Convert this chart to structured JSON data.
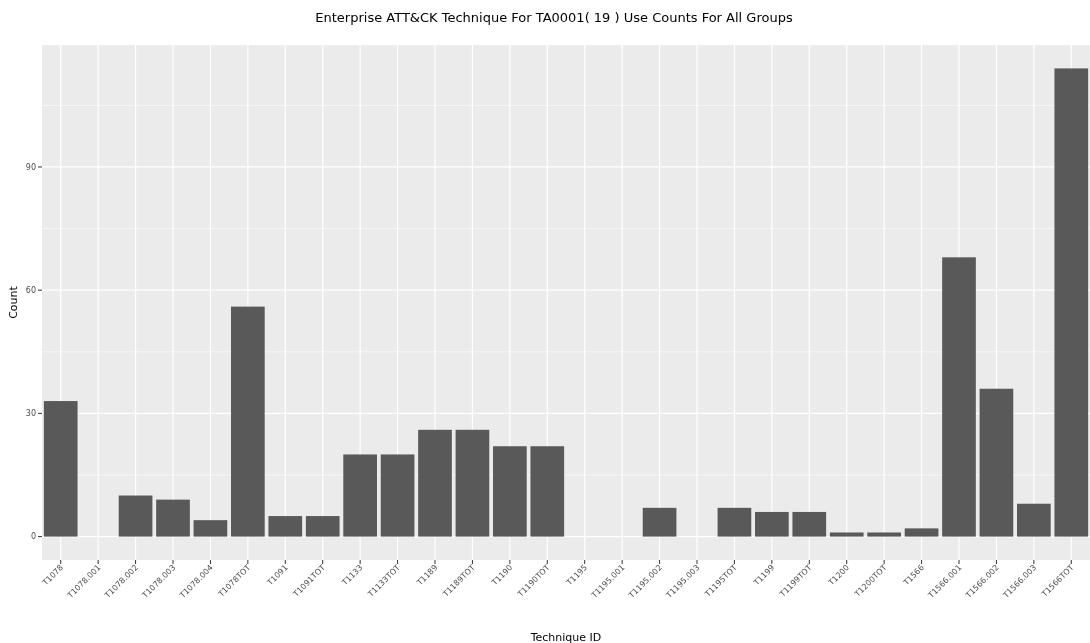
{
  "chart_data": {
    "type": "bar",
    "title": "Enterprise ATT&CK Technique For TA0001( 19 ) Use Counts For All Groups",
    "xlabel": "Technique ID",
    "ylabel": "Count",
    "categories": [
      "T1078",
      "T1078.001",
      "T1078.002",
      "T1078.003",
      "T1078.004",
      "T1078TOT",
      "T1091",
      "T1091TOT",
      "T1133",
      "T1133TOT",
      "T1189",
      "T1189TOT",
      "T1190",
      "T1190TOT",
      "T1195",
      "T1195.001",
      "T1195.002",
      "T1195.003",
      "T1195TOT",
      "T1199",
      "T1199TOT",
      "T1200",
      "T1200TOT",
      "T1566",
      "T1566.001",
      "T1566.002",
      "T1566.003",
      "T1566TOT"
    ],
    "values": [
      33,
      0,
      10,
      9,
      4,
      56,
      5,
      5,
      20,
      20,
      26,
      26,
      22,
      22,
      0,
      0,
      7,
      0,
      7,
      6,
      6,
      1,
      1,
      2,
      68,
      36,
      8,
      114
    ],
    "color": "#595959",
    "ylim": [
      -5.7,
      119.7
    ],
    "yticks": [
      0,
      30,
      60,
      90
    ],
    "grid": true
  }
}
